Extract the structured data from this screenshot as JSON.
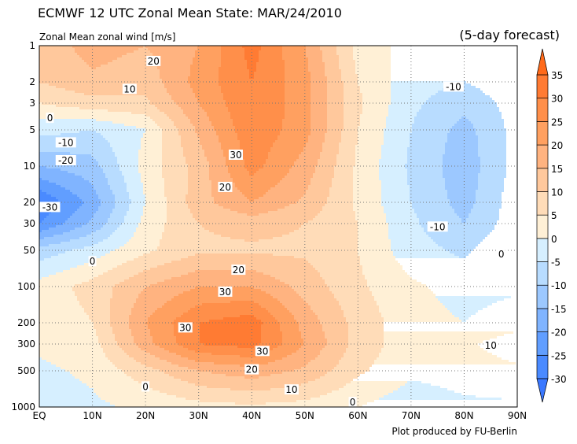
{
  "chart_data": {
    "type": "heatmap",
    "title": "ECMWF 12 UTC Zonal Mean State: MAR/24/2010",
    "subtitle": "Zonal Mean zonal wind [m/s]",
    "note": "(5-day forecast)",
    "credit": "Plot produced by FU-Berlin",
    "x_ticks": [
      "EQ",
      "10N",
      "20N",
      "30N",
      "40N",
      "50N",
      "60N",
      "70N",
      "80N",
      "90N"
    ],
    "y_ticks": [
      "1",
      "2",
      "3",
      "5",
      "10",
      "20",
      "30",
      "50",
      "100",
      "200",
      "300",
      "500",
      "1000"
    ],
    "y_scale": "log",
    "y_reversed": true,
    "grid": true,
    "lat": [
      0,
      10,
      20,
      30,
      40,
      50,
      60,
      70,
      80,
      90
    ],
    "pressure": [
      1,
      2,
      3,
      5,
      10,
      20,
      30,
      50,
      100,
      200,
      300,
      500,
      1000
    ],
    "values": [
      [
        12,
        17,
        15,
        20,
        32,
        20,
        3,
        -2,
        -2,
        -1
      ],
      [
        10,
        14,
        12,
        22,
        30,
        22,
        5,
        -3,
        -5,
        -2
      ],
      [
        5,
        8,
        9,
        20,
        30,
        22,
        6,
        -4,
        -8,
        -3
      ],
      [
        -3,
        -5,
        0,
        16,
        29,
        22,
        5,
        -5,
        -12,
        -3
      ],
      [
        -15,
        -12,
        2,
        12,
        27,
        18,
        4,
        -6,
        -13,
        -3
      ],
      [
        -30,
        -18,
        0,
        13,
        20,
        14,
        4,
        -5,
        -12,
        -2
      ],
      [
        -25,
        -14,
        2,
        10,
        12,
        10,
        5,
        -4,
        -10,
        -2
      ],
      [
        -8,
        -3,
        4,
        9,
        9,
        9,
        5,
        -3,
        -6,
        0
      ],
      [
        2,
        7,
        15,
        20,
        20,
        13,
        6,
        1,
        -2,
        -1
      ],
      [
        1,
        5,
        20,
        30,
        33,
        18,
        8,
        2,
        0,
        3
      ],
      [
        1,
        3,
        18,
        30,
        32,
        20,
        8,
        2,
        4,
        8
      ],
      [
        -1,
        1,
        8,
        15,
        18,
        14,
        6,
        1,
        2,
        4
      ],
      [
        -3,
        -1,
        1,
        3,
        4,
        3,
        0,
        -3,
        -1,
        -1
      ]
    ],
    "colorbar": {
      "levels": [
        -30,
        -25,
        -20,
        -15,
        -10,
        -5,
        0,
        5,
        10,
        15,
        20,
        25,
        30,
        35
      ],
      "labels": [
        "35",
        "30",
        "25",
        "20",
        "15",
        "10",
        "5",
        "0",
        "-5",
        "-10",
        "-15",
        "-20",
        "-25",
        "-30"
      ],
      "colors": [
        "#3a78ff",
        "#4a8aff",
        "#619eff",
        "#80b4ff",
        "#9cc8ff",
        "#b8dcff",
        "#d6efff",
        "#fff0d6",
        "#ffdcb8",
        "#ffc89c",
        "#ffb380",
        "#ffa060",
        "#ff8f4a",
        "#ff7b33",
        "#ff6a1a"
      ]
    },
    "contour_labels": [
      {
        "text": "20",
        "lat": 21.5,
        "p": 1.35
      },
      {
        "text": "10",
        "lat": 17,
        "p": 2.3
      },
      {
        "text": "0",
        "lat": 2,
        "p": 4
      },
      {
        "text": "-10",
        "lat": 5,
        "p": 6.4
      },
      {
        "text": "-20",
        "lat": 5,
        "p": 9
      },
      {
        "text": "-30",
        "lat": 2,
        "p": 22
      },
      {
        "text": "0",
        "lat": 10,
        "p": 62
      },
      {
        "text": "30",
        "lat": 37,
        "p": 8.1
      },
      {
        "text": "20",
        "lat": 35,
        "p": 15
      },
      {
        "text": "-10",
        "lat": 78,
        "p": 2.2
      },
      {
        "text": "-10",
        "lat": 75,
        "p": 32
      },
      {
        "text": "0",
        "lat": 87,
        "p": 54
      },
      {
        "text": "20",
        "lat": 37.5,
        "p": 73
      },
      {
        "text": "30",
        "lat": 35,
        "p": 111
      },
      {
        "text": "30",
        "lat": 27.5,
        "p": 220
      },
      {
        "text": "30",
        "lat": 42,
        "p": 345
      },
      {
        "text": "20",
        "lat": 40,
        "p": 490
      },
      {
        "text": "10",
        "lat": 47.5,
        "p": 720
      },
      {
        "text": "0",
        "lat": 20,
        "p": 680
      },
      {
        "text": "10",
        "lat": 85,
        "p": 310
      },
      {
        "text": "0",
        "lat": 59,
        "p": 915
      }
    ]
  }
}
